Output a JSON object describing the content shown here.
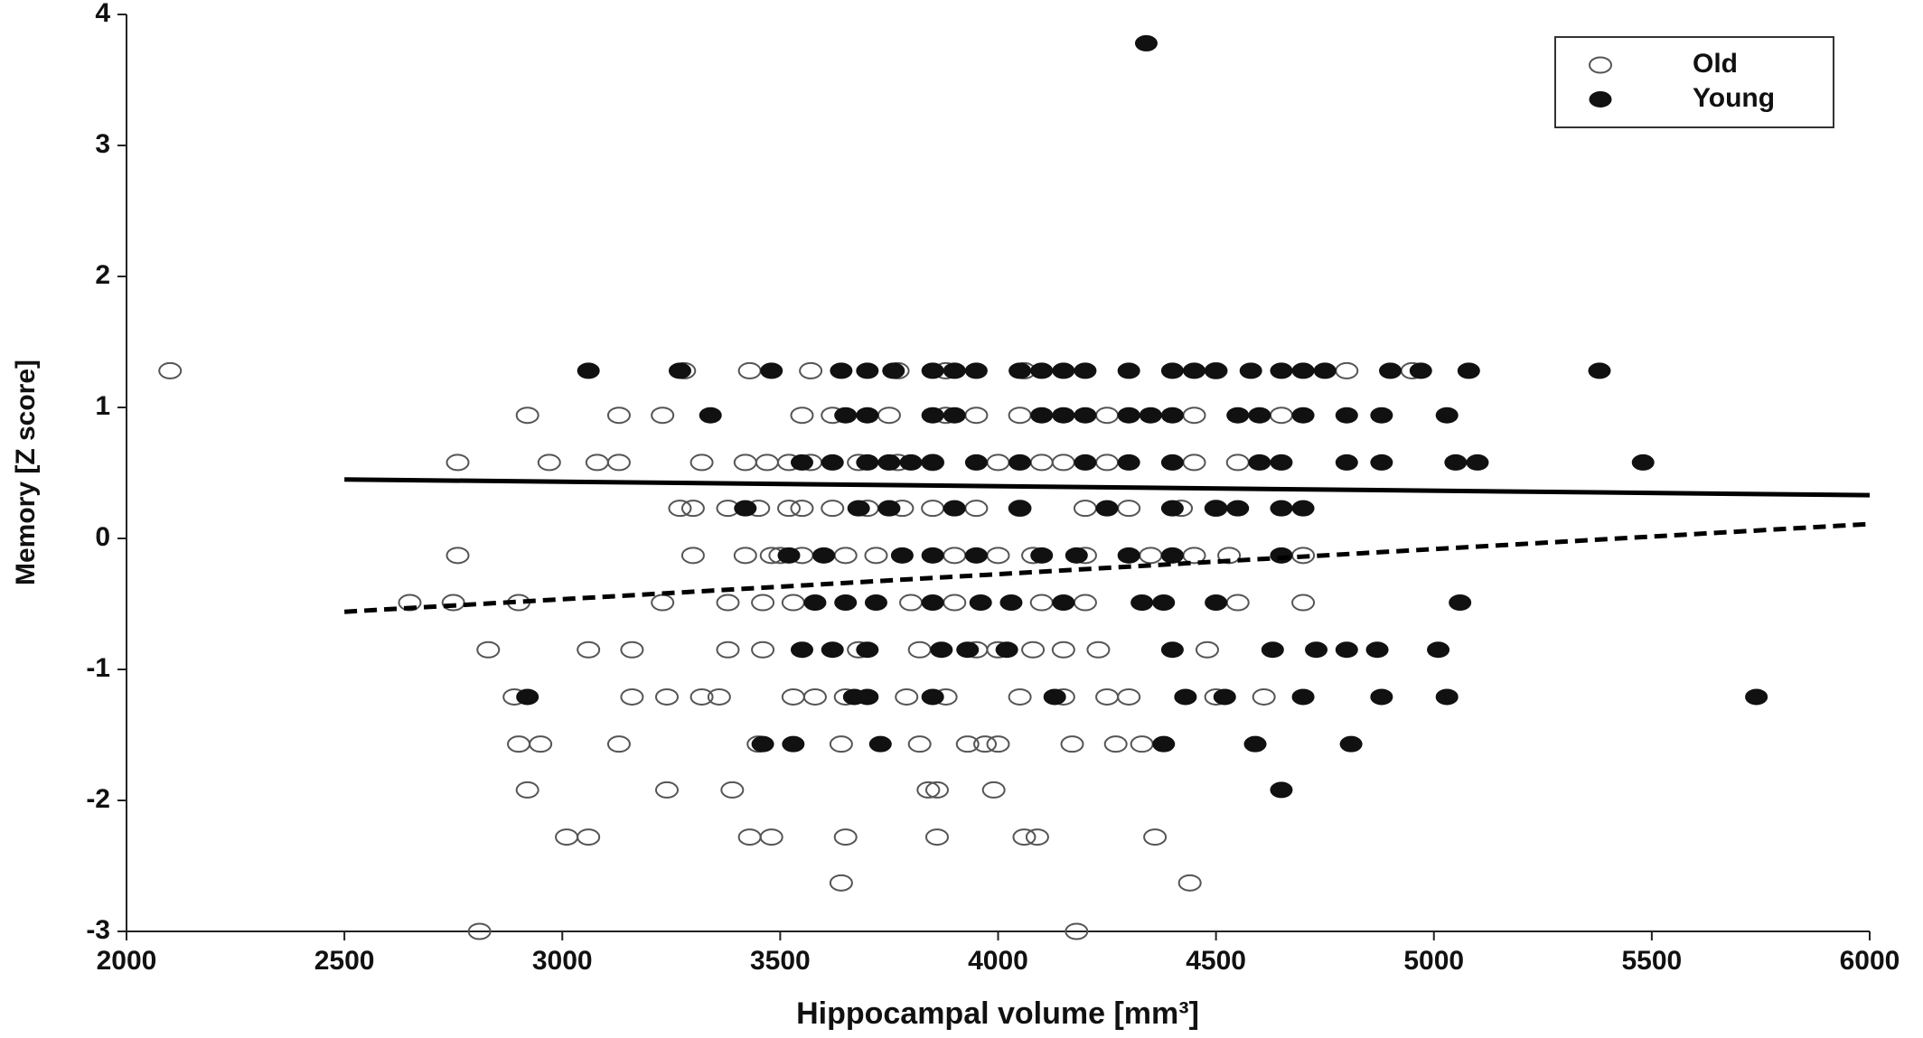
{
  "chart_data": {
    "type": "scatter",
    "xlabel": "Hippocampal volume [mm³]",
    "ylabel": "Memory [Z score]",
    "xlim": [
      2000,
      6000
    ],
    "xticks": [
      2000,
      2500,
      3000,
      3500,
      4000,
      4500,
      5000,
      5500,
      6000
    ],
    "ylim": [
      -3,
      4
    ],
    "yticks": [
      -3,
      -2,
      -1,
      0,
      1,
      2,
      3,
      4
    ],
    "legend": "top-right",
    "series": [
      {
        "name": "Old",
        "color": "#555555",
        "marker": "open",
        "x": [
          2100,
          3280,
          3430,
          3570,
          3770,
          3880,
          4060,
          4500,
          4800,
          4950,
          2920,
          3130,
          3230,
          3550,
          3620,
          3750,
          3880,
          3950,
          4050,
          4250,
          4450,
          4650,
          2760,
          2970,
          3080,
          3130,
          3320,
          3420,
          3470,
          3520,
          3570,
          3680,
          3770,
          3850,
          4000,
          4100,
          4150,
          4250,
          4450,
          4550,
          3270,
          3300,
          3380,
          3450,
          3520,
          3550,
          3620,
          3700,
          3780,
          3850,
          3950,
          4050,
          4200,
          4300,
          4420,
          4500,
          2760,
          3300,
          3420,
          3480,
          3500,
          3550,
          3650,
          3720,
          3900,
          4000,
          4080,
          4200,
          4350,
          4450,
          4530,
          4700,
          2650,
          2750,
          2900,
          3230,
          3380,
          3460,
          3530,
          3800,
          3900,
          4100,
          4200,
          4550,
          4700,
          2830,
          3060,
          3160,
          3380,
          3460,
          3680,
          3820,
          3950,
          4000,
          4080,
          4150,
          4230,
          4480,
          2890,
          3160,
          3240,
          3320,
          3360,
          3530,
          3580,
          3650,
          3790,
          3880,
          4050,
          4150,
          4250,
          4300,
          4500,
          4610,
          2900,
          2950,
          3130,
          3450,
          3640,
          3820,
          3930,
          3970,
          4000,
          4170,
          4270,
          4330,
          2920,
          3240,
          3390,
          3840,
          3860,
          3990,
          3010,
          3060,
          3430,
          3480,
          3650,
          3860,
          4060,
          4090,
          4360,
          3640,
          4440,
          2810,
          4180
        ],
        "values": [
          1.28,
          1.28,
          1.28,
          1.28,
          1.28,
          1.28,
          1.28,
          1.28,
          1.28,
          1.28,
          0.94,
          0.94,
          0.94,
          0.94,
          0.94,
          0.94,
          0.94,
          0.94,
          0.94,
          0.94,
          0.94,
          0.94,
          0.58,
          0.58,
          0.58,
          0.58,
          0.58,
          0.58,
          0.58,
          0.58,
          0.58,
          0.58,
          0.58,
          0.58,
          0.58,
          0.58,
          0.58,
          0.58,
          0.58,
          0.58,
          0.23,
          0.23,
          0.23,
          0.23,
          0.23,
          0.23,
          0.23,
          0.23,
          0.23,
          0.23,
          0.23,
          0.23,
          0.23,
          0.23,
          0.23,
          0.23,
          -0.13,
          -0.13,
          -0.13,
          -0.13,
          -0.13,
          -0.13,
          -0.13,
          -0.13,
          -0.13,
          -0.13,
          -0.13,
          -0.13,
          -0.13,
          -0.13,
          -0.13,
          -0.13,
          -0.49,
          -0.49,
          -0.49,
          -0.49,
          -0.49,
          -0.49,
          -0.49,
          -0.49,
          -0.49,
          -0.49,
          -0.49,
          -0.49,
          -0.49,
          -0.85,
          -0.85,
          -0.85,
          -0.85,
          -0.85,
          -0.85,
          -0.85,
          -0.85,
          -0.85,
          -0.85,
          -0.85,
          -0.85,
          -0.85,
          -1.21,
          -1.21,
          -1.21,
          -1.21,
          -1.21,
          -1.21,
          -1.21,
          -1.21,
          -1.21,
          -1.21,
          -1.21,
          -1.21,
          -1.21,
          -1.21,
          -1.21,
          -1.21,
          -1.57,
          -1.57,
          -1.57,
          -1.57,
          -1.57,
          -1.57,
          -1.57,
          -1.57,
          -1.57,
          -1.57,
          -1.57,
          -1.57,
          -1.92,
          -1.92,
          -1.92,
          -1.92,
          -1.92,
          -1.92,
          -2.28,
          -2.28,
          -2.28,
          -2.28,
          -2.28,
          -2.28,
          -2.28,
          -2.28,
          -2.28,
          -2.63,
          -2.63,
          -3.0,
          -3.0
        ]
      },
      {
        "name": "Young",
        "color": "#111111",
        "marker": "filled",
        "x": [
          3060,
          3270,
          3480,
          3640,
          3700,
          3760,
          3850,
          3900,
          3950,
          4050,
          4100,
          4150,
          4200,
          4300,
          4400,
          4450,
          4500,
          4580,
          4650,
          4700,
          4750,
          4900,
          4970,
          5080,
          5380,
          3340,
          3650,
          3700,
          3850,
          3900,
          4100,
          4150,
          4200,
          4300,
          4350,
          4400,
          4550,
          4600,
          4700,
          4800,
          4880,
          5030,
          3550,
          3620,
          3700,
          3750,
          3800,
          3850,
          3950,
          4050,
          4200,
          4300,
          4400,
          4600,
          4650,
          4800,
          4880,
          5050,
          5100,
          5480,
          3420,
          3680,
          3750,
          3900,
          4050,
          4250,
          4400,
          4500,
          4550,
          4650,
          4700,
          3520,
          3600,
          3780,
          3850,
          3950,
          4100,
          4180,
          4300,
          4400,
          4650,
          3580,
          3650,
          3720,
          3850,
          3960,
          4030,
          4150,
          4330,
          4380,
          4500,
          5060,
          3550,
          3620,
          3700,
          3870,
          3930,
          4020,
          4400,
          4630,
          4730,
          4800,
          4870,
          5010,
          2920,
          3670,
          3700,
          3850,
          4130,
          4430,
          4520,
          4700,
          4880,
          5030,
          5740,
          3460,
          3530,
          3730,
          4380,
          4590,
          4810,
          4650,
          4340
        ],
        "values": [
          1.28,
          1.28,
          1.28,
          1.28,
          1.28,
          1.28,
          1.28,
          1.28,
          1.28,
          1.28,
          1.28,
          1.28,
          1.28,
          1.28,
          1.28,
          1.28,
          1.28,
          1.28,
          1.28,
          1.28,
          1.28,
          1.28,
          1.28,
          1.28,
          1.28,
          0.94,
          0.94,
          0.94,
          0.94,
          0.94,
          0.94,
          0.94,
          0.94,
          0.94,
          0.94,
          0.94,
          0.94,
          0.94,
          0.94,
          0.94,
          0.94,
          0.94,
          0.58,
          0.58,
          0.58,
          0.58,
          0.58,
          0.58,
          0.58,
          0.58,
          0.58,
          0.58,
          0.58,
          0.58,
          0.58,
          0.58,
          0.58,
          0.58,
          0.58,
          0.58,
          0.23,
          0.23,
          0.23,
          0.23,
          0.23,
          0.23,
          0.23,
          0.23,
          0.23,
          0.23,
          0.23,
          -0.13,
          -0.13,
          -0.13,
          -0.13,
          -0.13,
          -0.13,
          -0.13,
          -0.13,
          -0.13,
          -0.13,
          -0.49,
          -0.49,
          -0.49,
          -0.49,
          -0.49,
          -0.49,
          -0.49,
          -0.49,
          -0.49,
          -0.49,
          -0.49,
          -0.85,
          -0.85,
          -0.85,
          -0.85,
          -0.85,
          -0.85,
          -0.85,
          -0.85,
          -0.85,
          -0.85,
          -0.85,
          -0.85,
          -1.21,
          -1.21,
          -1.21,
          -1.21,
          -1.21,
          -1.21,
          -1.21,
          -1.21,
          -1.21,
          -1.21,
          -1.21,
          -1.57,
          -1.57,
          -1.57,
          -1.57,
          -1.57,
          -1.57,
          -1.92,
          3.78
        ]
      }
    ],
    "fit_lines": [
      {
        "x": [
          2500,
          6000
        ],
        "values": [
          0.45,
          0.33
        ],
        "style": "solid",
        "color": "#000000"
      },
      {
        "x": [
          2500,
          6000
        ],
        "values": [
          -0.56,
          0.11
        ],
        "style": "dashed",
        "color": "#000000"
      }
    ]
  }
}
